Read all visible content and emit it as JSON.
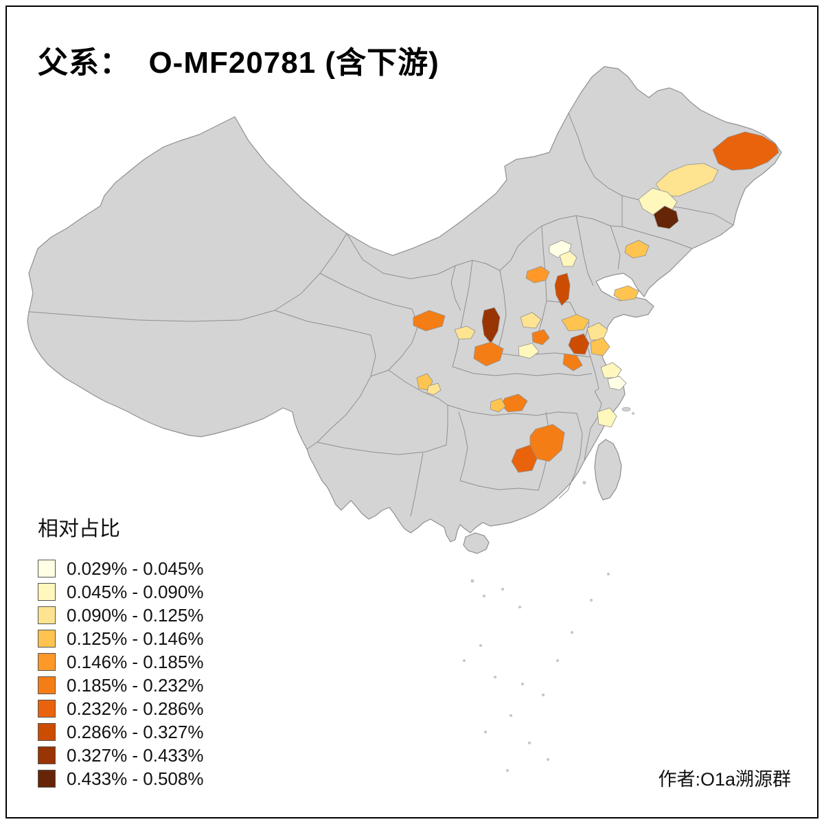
{
  "title": "父系：  O-MF20781 (含下游)",
  "attribution": "作者:O1a溯源群",
  "legend": {
    "title": "相对占比",
    "classes": [
      {
        "label": "0.029% - 0.045%",
        "color": "#FFFFE5"
      },
      {
        "label": "0.045% - 0.090%",
        "color": "#FFF7BC"
      },
      {
        "label": "0.090% - 0.125%",
        "color": "#FEE391"
      },
      {
        "label": "0.125% - 0.146%",
        "color": "#FEC44F"
      },
      {
        "label": "0.146% - 0.185%",
        "color": "#FE9929"
      },
      {
        "label": "0.185% - 0.232%",
        "color": "#F57D15"
      },
      {
        "label": "0.232% - 0.286%",
        "color": "#E8630C"
      },
      {
        "label": "0.286% - 0.327%",
        "color": "#CC4C02"
      },
      {
        "label": "0.327% - 0.433%",
        "color": "#993404"
      },
      {
        "label": "0.433% - 0.508%",
        "color": "#662506"
      }
    ]
  },
  "map": {
    "base_fill": "#D4D4D4",
    "border_color": "#8F8F8F",
    "regions": [
      {
        "id": "r1",
        "class_label": "0.232% - 0.286%"
      },
      {
        "id": "r2",
        "class_label": "0.090% - 0.125%"
      },
      {
        "id": "r3",
        "class_label": "0.045% - 0.090%"
      },
      {
        "id": "r4",
        "class_label": "0.433% - 0.508%"
      },
      {
        "id": "r5",
        "class_label": "0.125% - 0.146%"
      },
      {
        "id": "r6",
        "class_label": "0.029% - 0.045%"
      },
      {
        "id": "r7",
        "class_label": "0.045% - 0.090%"
      },
      {
        "id": "r8",
        "class_label": "0.146% - 0.185%"
      },
      {
        "id": "r9",
        "class_label": "0.286% - 0.327%"
      },
      {
        "id": "r10",
        "class_label": "0.125% - 0.146%"
      },
      {
        "id": "r11",
        "class_label": "0.185% - 0.232%"
      },
      {
        "id": "r12",
        "class_label": "0.090% - 0.125%"
      },
      {
        "id": "r13",
        "class_label": "0.327% - 0.433%"
      },
      {
        "id": "r14",
        "class_label": "0.185% - 0.232%"
      },
      {
        "id": "r15",
        "class_label": "0.090% - 0.125%"
      },
      {
        "id": "r16",
        "class_label": "0.185% - 0.232%"
      },
      {
        "id": "r17",
        "class_label": "0.045% - 0.090%"
      },
      {
        "id": "r18",
        "class_label": "0.125% - 0.146%"
      },
      {
        "id": "r19",
        "class_label": "0.286% - 0.327%"
      },
      {
        "id": "r20",
        "class_label": "0.185% - 0.232%"
      },
      {
        "id": "r21",
        "class_label": "0.090% - 0.125%"
      },
      {
        "id": "r22",
        "class_label": "0.125% - 0.146%"
      },
      {
        "id": "r23",
        "class_label": "0.045% - 0.090%"
      },
      {
        "id": "r24",
        "class_label": "0.029% - 0.045%"
      },
      {
        "id": "r25",
        "class_label": "0.125% - 0.146%"
      },
      {
        "id": "r26",
        "class_label": "0.090% - 0.125%"
      },
      {
        "id": "r27",
        "class_label": "0.185% - 0.232%"
      },
      {
        "id": "r28",
        "class_label": "0.125% - 0.146%"
      },
      {
        "id": "r29",
        "class_label": "0.045% - 0.090%"
      },
      {
        "id": "r30",
        "class_label": "0.185% - 0.232%"
      },
      {
        "id": "r31",
        "class_label": "0.232% - 0.286%"
      }
    ]
  }
}
